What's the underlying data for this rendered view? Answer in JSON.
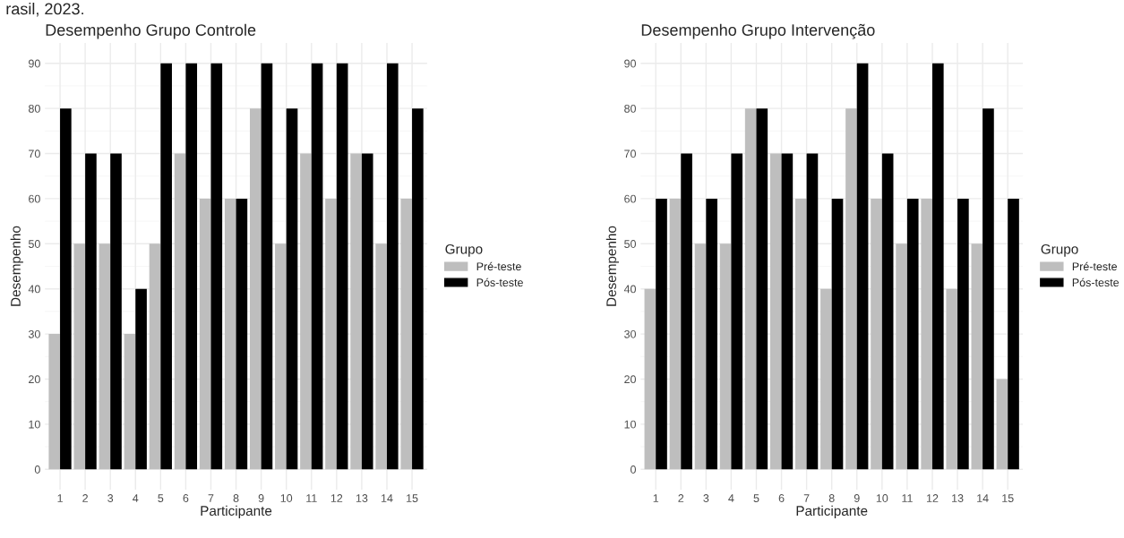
{
  "chart_data": [
    {
      "type": "bar",
      "title": "Desempenho Grupo Controle",
      "xlabel": "Participante",
      "ylabel": "Desempenho",
      "legend_title": "Grupo",
      "annotations": [
        "rasil, 2023."
      ],
      "categories": [
        "1",
        "2",
        "3",
        "4",
        "5",
        "6",
        "7",
        "8",
        "9",
        "10",
        "11",
        "12",
        "13",
        "14",
        "15"
      ],
      "series": [
        {
          "name": "Pré-teste",
          "color": "#bebebe",
          "values": [
            30,
            50,
            50,
            30,
            50,
            70,
            60,
            60,
            80,
            50,
            70,
            60,
            70,
            50,
            60
          ]
        },
        {
          "name": "Pós-teste",
          "color": "#000000",
          "values": [
            80,
            70,
            70,
            40,
            90,
            90,
            90,
            60,
            90,
            80,
            90,
            90,
            70,
            90,
            80
          ]
        }
      ],
      "ylim": [
        -4.5,
        94.5
      ],
      "yticks": [
        0,
        10,
        20,
        30,
        40,
        50,
        60,
        70,
        80,
        90
      ],
      "grid": true,
      "legend": "right"
    },
    {
      "type": "bar",
      "title": "Desempenho Grupo Intervenção",
      "xlabel": "Participante",
      "ylabel": "Desempenho",
      "legend_title": "Grupo",
      "categories": [
        "1",
        "2",
        "3",
        "4",
        "5",
        "6",
        "7",
        "8",
        "9",
        "10",
        "11",
        "12",
        "13",
        "14",
        "15"
      ],
      "series": [
        {
          "name": "Pré-teste",
          "color": "#bebebe",
          "values": [
            40,
            60,
            50,
            50,
            80,
            70,
            60,
            40,
            80,
            60,
            50,
            60,
            40,
            50,
            20
          ]
        },
        {
          "name": "Pós-teste",
          "color": "#000000",
          "values": [
            60,
            70,
            60,
            70,
            80,
            70,
            70,
            60,
            90,
            70,
            60,
            90,
            60,
            80,
            60
          ]
        }
      ],
      "ylim": [
        -4.5,
        94.5
      ],
      "yticks": [
        0,
        10,
        20,
        30,
        40,
        50,
        60,
        70,
        80,
        90
      ],
      "grid": true,
      "legend": "right"
    }
  ]
}
